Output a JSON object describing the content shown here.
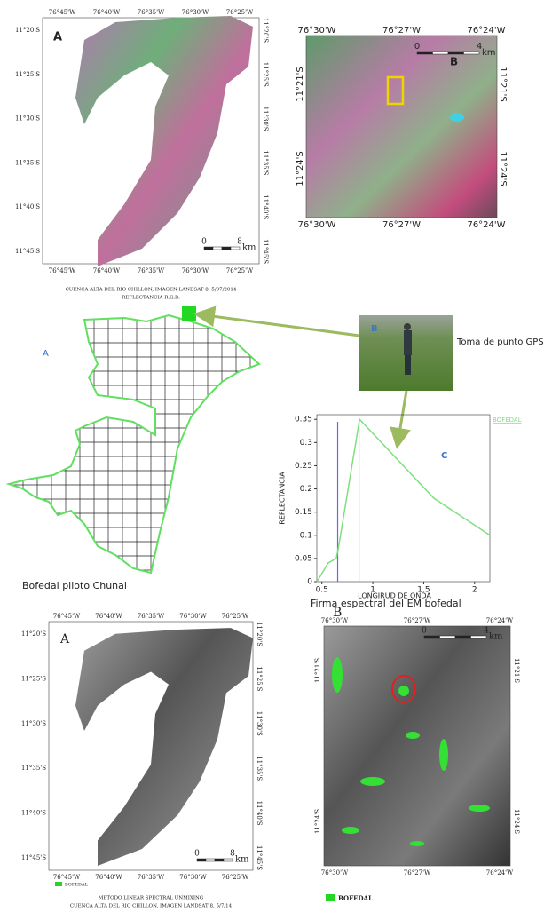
{
  "map_top_a": {
    "label": "A",
    "top": [
      "76°45'W",
      "76°40'W",
      "76°35'W",
      "76°30'W",
      "76°25'W"
    ],
    "bottom": [
      "76°45'W",
      "76°40'W",
      "76°35'W",
      "76°30'W",
      "76°25'W"
    ],
    "left": [
      "11°20'S",
      "11°25'S",
      "11°30'S",
      "11°35'S",
      "11°40'S",
      "11°45'S"
    ],
    "right": [
      "11°20'S",
      "11°25'S",
      "11°30'S",
      "11°35'S",
      "11°40'S",
      "11°45'S"
    ],
    "scale": [
      "0",
      "8",
      "km"
    ],
    "caption": [
      "CUENCA ALTA DEL RIO CHILLON, IMAGEN  LANDSAT 8,  5/07/2014",
      "REFLECTANCIA R.G.B."
    ]
  },
  "map_top_b": {
    "label": "B",
    "top": [
      "76°30'W",
      "76°27'W",
      "76°24'W"
    ],
    "bottom": [
      "76°30'W",
      "76°27'W",
      "76°24'W"
    ],
    "left": [
      "11°21'S",
      "11°24'S"
    ],
    "right": [
      "11°21'S",
      "11°24'S"
    ],
    "scale": [
      "0",
      "4",
      "km"
    ]
  },
  "pilot": {
    "label": "A",
    "caption": "Bofedal piloto Chunal"
  },
  "photo": {
    "label": "B",
    "caption": "Toma de punto GPS"
  },
  "spectrum": {
    "type": "line",
    "label": "C",
    "caption": "Firma espectral del EM  bofedal",
    "x_label": "LONGIRUD DE ONDA",
    "y_label": "REFLECTANCIA",
    "series": [
      {
        "name": "BOFEDAL",
        "color": "#7ee07e",
        "x": [
          0.45,
          0.48,
          0.56,
          0.64,
          0.66,
          0.87,
          1.6,
          2.15
        ],
        "values": [
          0,
          0.01,
          0.04,
          0.05,
          0.07,
          0.35,
          0.18,
          0.1
        ]
      }
    ],
    "markers": [
      {
        "x": 0.655,
        "color": "#6a6ad8"
      },
      {
        "x": 0.865,
        "color": "#7ee07e"
      }
    ],
    "xlim": [
      0.45,
      2.15
    ],
    "ylim": [
      0,
      0.36
    ],
    "xticks": [
      0.5,
      1,
      1.5,
      2
    ],
    "yticks": [
      0,
      0.05,
      0.1,
      0.15,
      0.2,
      0.25,
      0.3,
      0.35
    ]
  },
  "map_bottom_a": {
    "label": "A",
    "top": [
      "76°45'W",
      "76°40'W",
      "76°35'W",
      "76°30'W",
      "76°25'W"
    ],
    "bottom": [
      "76°45'W",
      "76°40'W",
      "76°35'W",
      "76°30'W",
      "76°25'W"
    ],
    "left": [
      "11°20'S",
      "11°25'S",
      "11°30'S",
      "11°35'S",
      "11°40'S",
      "11°45'S"
    ],
    "right": [
      "11°20'S",
      "11°25'S",
      "11°30'S",
      "11°35'S",
      "11°40'S",
      "11°45'S"
    ],
    "scale": [
      "0",
      "8",
      "km"
    ],
    "legend": "BOFEDAL",
    "caption": [
      "METODO LINEAR SPECTRAL UNMIXING",
      "CUENCA ALTA DEL RIO CHILLON, IMAGEN LANDSAT 8, 5/7/14"
    ]
  },
  "map_bottom_b": {
    "label": "B",
    "top": [
      "76°30'W",
      "76°27'W",
      "76°24'W"
    ],
    "bottom": [
      "76°30'W",
      "76°27'W",
      "76°24'W"
    ],
    "left": [
      "11°21'S",
      "11°24'S"
    ],
    "right": [
      "11°21'S",
      "11°24'S"
    ],
    "scale": [
      "0",
      "4",
      "km"
    ],
    "legend": "BOFEDAL"
  }
}
